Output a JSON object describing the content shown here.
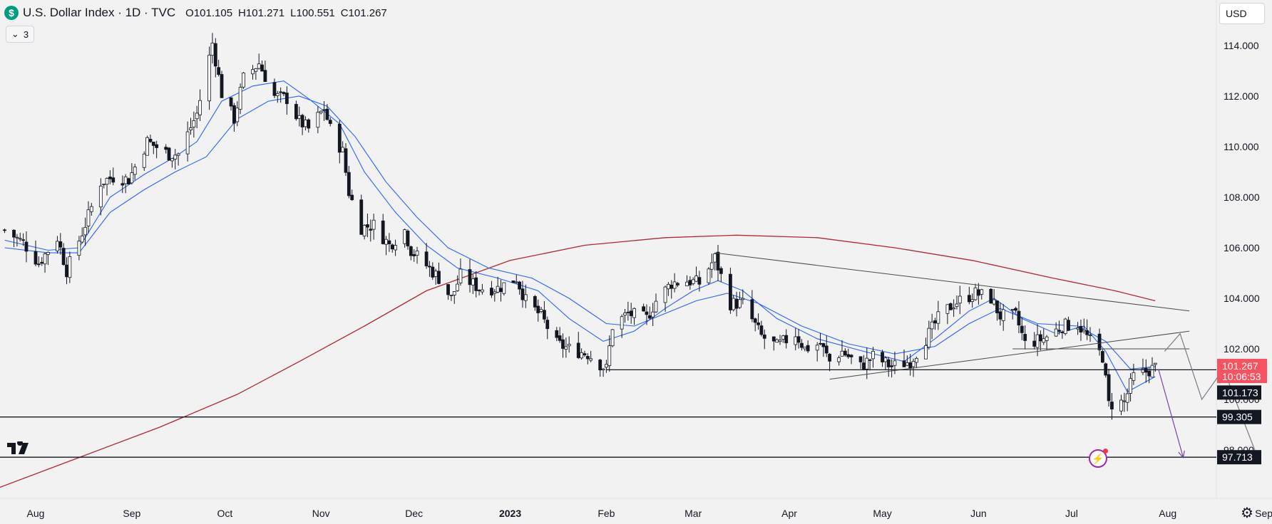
{
  "header": {
    "title": "U.S. Dollar Index · 1D · TVC",
    "logo_symbol": "$",
    "open_key": "O",
    "open": "101.105",
    "high_key": "H",
    "high": "101.271",
    "low_key": "L",
    "low": "100.551",
    "close_key": "C",
    "close": "101.267"
  },
  "legend_toggle": {
    "count": "3",
    "icon": "chevron-down-icon"
  },
  "currency": "USD",
  "colors": {
    "up_candle": "#ffffff",
    "down_candle": "#131722",
    "ema": "#2962ff",
    "sma200": "#b22833",
    "price_tag": "#f7525f",
    "level_tag": "#131722",
    "projection": "#787b86",
    "projection_alt": "#7b3fa8"
  },
  "chart_data": {
    "type": "candlestick",
    "symbol": "U.S. Dollar Index",
    "interval": "1D",
    "ylim": [
      96.0,
      115.5
    ],
    "y_ticks": [
      "114.000",
      "112.000",
      "110.000",
      "108.000",
      "106.000",
      "104.000",
      "102.000",
      "100.000",
      "98.000"
    ],
    "x_ticks": [
      {
        "label": "Aug",
        "date": "2022-08-01"
      },
      {
        "label": "Sep",
        "date": "2022-09-01"
      },
      {
        "label": "Oct",
        "date": "2022-10-01"
      },
      {
        "label": "Nov",
        "date": "2022-11-01"
      },
      {
        "label": "Dec",
        "date": "2022-12-01"
      },
      {
        "label": "2023",
        "date": "2023-01-01"
      },
      {
        "label": "Feb",
        "date": "2023-02-01"
      },
      {
        "label": "Mar",
        "date": "2023-03-01"
      },
      {
        "label": "Apr",
        "date": "2023-04-01"
      },
      {
        "label": "May",
        "date": "2023-05-01"
      },
      {
        "label": "Jun",
        "date": "2023-06-01"
      },
      {
        "label": "Jul",
        "date": "2023-07-01"
      },
      {
        "label": "Aug",
        "date": "2023-08-01"
      },
      {
        "label": "Sep",
        "date": "2023-09-01"
      }
    ],
    "last_price": "101.267",
    "countdown": "10:06:53",
    "horizontal_levels": [
      "101.173",
      "99.305",
      "97.713"
    ],
    "price_path": [
      [
        "2022-07-22",
        106.7
      ],
      [
        "2022-07-28",
        106.2
      ],
      [
        "2022-08-02",
        105.4
      ],
      [
        "2022-08-08",
        106.4
      ],
      [
        "2022-08-11",
        105.1
      ],
      [
        "2022-08-16",
        106.6
      ],
      [
        "2022-08-22",
        108.6
      ],
      [
        "2022-08-26",
        108.8
      ],
      [
        "2022-08-31",
        108.7
      ],
      [
        "2022-09-06",
        110.2
      ],
      [
        "2022-09-13",
        109.7
      ],
      [
        "2022-09-16",
        109.7
      ],
      [
        "2022-09-22",
        111.3
      ],
      [
        "2022-09-27",
        114.1
      ],
      [
        "2022-09-30",
        112.1
      ],
      [
        "2022-10-04",
        111.1
      ],
      [
        "2022-10-07",
        112.7
      ],
      [
        "2022-10-12",
        113.3
      ],
      [
        "2022-10-17",
        112.0
      ],
      [
        "2022-10-21",
        111.9
      ],
      [
        "2022-10-25",
        111.0
      ],
      [
        "2022-10-28",
        110.7
      ],
      [
        "2022-11-02",
        111.5
      ],
      [
        "2022-11-04",
        110.7
      ],
      [
        "2022-11-08",
        109.8
      ],
      [
        "2022-11-10",
        108.2
      ],
      [
        "2022-11-14",
        106.8
      ],
      [
        "2022-11-18",
        106.9
      ],
      [
        "2022-11-23",
        106.1
      ],
      [
        "2022-11-28",
        106.7
      ],
      [
        "2022-11-30",
        105.9
      ],
      [
        "2022-12-05",
        105.3
      ],
      [
        "2022-12-09",
        104.8
      ],
      [
        "2022-12-13",
        104.0
      ],
      [
        "2022-12-16",
        104.9
      ],
      [
        "2022-12-22",
        104.4
      ],
      [
        "2022-12-28",
        104.4
      ],
      [
        "2023-01-03",
        104.8
      ],
      [
        "2023-01-06",
        103.9
      ],
      [
        "2023-01-11",
        103.3
      ],
      [
        "2023-01-16",
        102.2
      ],
      [
        "2023-01-20",
        102.0
      ],
      [
        "2023-01-26",
        101.8
      ],
      [
        "2023-02-01",
        101.2
      ],
      [
        "2023-02-03",
        102.9
      ],
      [
        "2023-02-08",
        103.4
      ],
      [
        "2023-02-14",
        103.2
      ],
      [
        "2023-02-17",
        103.9
      ],
      [
        "2023-02-22",
        104.6
      ],
      [
        "2023-02-27",
        104.7
      ],
      [
        "2023-03-03",
        104.6
      ],
      [
        "2023-03-08",
        105.6
      ],
      [
        "2023-03-13",
        103.8
      ],
      [
        "2023-03-17",
        103.8
      ],
      [
        "2023-03-23",
        102.5
      ],
      [
        "2023-03-28",
        102.1
      ],
      [
        "2023-04-03",
        102.6
      ],
      [
        "2023-04-06",
        102.0
      ],
      [
        "2023-04-11",
        102.2
      ],
      [
        "2023-04-14",
        101.5
      ],
      [
        "2023-04-18",
        101.9
      ],
      [
        "2023-04-24",
        101.3
      ],
      [
        "2023-04-28",
        101.7
      ],
      [
        "2023-05-04",
        101.3
      ],
      [
        "2023-05-10",
        101.5
      ],
      [
        "2023-05-15",
        102.4
      ],
      [
        "2023-05-19",
        103.2
      ],
      [
        "2023-05-24",
        103.8
      ],
      [
        "2023-05-31",
        104.2
      ],
      [
        "2023-06-05",
        104.0
      ],
      [
        "2023-06-08",
        103.3
      ],
      [
        "2023-06-13",
        103.3
      ],
      [
        "2023-06-16",
        102.2
      ],
      [
        "2023-06-22",
        102.4
      ],
      [
        "2023-06-28",
        102.9
      ],
      [
        "2023-07-03",
        103.0
      ],
      [
        "2023-07-07",
        102.3
      ],
      [
        "2023-07-11",
        101.7
      ],
      [
        "2023-07-13",
        99.8
      ],
      [
        "2023-07-18",
        99.9
      ],
      [
        "2023-07-21",
        100.9
      ],
      [
        "2023-07-25",
        101.1
      ],
      [
        "2023-07-28",
        101.27
      ]
    ],
    "ema_fast": [
      [
        "2022-07-22",
        106.3
      ],
      [
        "2022-08-05",
        105.9
      ],
      [
        "2022-08-15",
        106.0
      ],
      [
        "2022-08-25",
        108.0
      ],
      [
        "2022-09-05",
        108.9
      ],
      [
        "2022-09-15",
        109.6
      ],
      [
        "2022-09-22",
        110.2
      ],
      [
        "2022-09-30",
        111.8
      ],
      [
        "2022-10-10",
        112.4
      ],
      [
        "2022-10-20",
        112.6
      ],
      [
        "2022-10-28",
        111.9
      ],
      [
        "2022-11-07",
        110.9
      ],
      [
        "2022-11-15",
        109.0
      ],
      [
        "2022-11-25",
        107.4
      ],
      [
        "2022-12-05",
        106.1
      ],
      [
        "2022-12-15",
        105.2
      ],
      [
        "2022-12-28",
        104.8
      ],
      [
        "2023-01-10",
        104.3
      ],
      [
        "2023-01-20",
        103.2
      ],
      [
        "2023-01-31",
        102.3
      ],
      [
        "2023-02-10",
        102.7
      ],
      [
        "2023-02-20",
        103.6
      ],
      [
        "2023-03-01",
        104.3
      ],
      [
        "2023-03-09",
        104.7
      ],
      [
        "2023-03-17",
        104.3
      ],
      [
        "2023-03-28",
        103.2
      ],
      [
        "2023-04-10",
        102.4
      ],
      [
        "2023-04-25",
        101.9
      ],
      [
        "2023-05-08",
        101.5
      ],
      [
        "2023-05-18",
        102.4
      ],
      [
        "2023-05-29",
        103.5
      ],
      [
        "2023-06-06",
        104.0
      ],
      [
        "2023-06-15",
        103.2
      ],
      [
        "2023-06-26",
        102.6
      ],
      [
        "2023-07-05",
        102.9
      ],
      [
        "2023-07-12",
        101.9
      ],
      [
        "2023-07-19",
        100.3
      ],
      [
        "2023-07-28",
        100.9
      ]
    ],
    "ema_slow": [
      [
        "2022-07-22",
        106.0
      ],
      [
        "2022-08-05",
        105.8
      ],
      [
        "2022-08-15",
        105.8
      ],
      [
        "2022-08-25",
        107.4
      ],
      [
        "2022-09-05",
        108.3
      ],
      [
        "2022-09-15",
        109.0
      ],
      [
        "2022-09-25",
        109.6
      ],
      [
        "2022-10-05",
        111.1
      ],
      [
        "2022-10-15",
        111.8
      ],
      [
        "2022-10-25",
        112.0
      ],
      [
        "2022-11-03",
        111.6
      ],
      [
        "2022-11-12",
        110.4
      ],
      [
        "2022-11-22",
        108.6
      ],
      [
        "2022-12-02",
        107.2
      ],
      [
        "2022-12-12",
        106.0
      ],
      [
        "2022-12-25",
        105.2
      ],
      [
        "2023-01-08",
        104.8
      ],
      [
        "2023-01-20",
        104.0
      ],
      [
        "2023-02-01",
        103.0
      ],
      [
        "2023-02-10",
        102.9
      ],
      [
        "2023-02-20",
        103.4
      ],
      [
        "2023-03-02",
        103.9
      ],
      [
        "2023-03-12",
        104.2
      ],
      [
        "2023-03-22",
        103.8
      ],
      [
        "2023-04-05",
        102.9
      ],
      [
        "2023-04-20",
        102.2
      ],
      [
        "2023-05-05",
        101.8
      ],
      [
        "2023-05-18",
        102.1
      ],
      [
        "2023-05-29",
        103.0
      ],
      [
        "2023-06-08",
        103.6
      ],
      [
        "2023-06-20",
        103.0
      ],
      [
        "2023-07-03",
        102.9
      ],
      [
        "2023-07-12",
        102.3
      ],
      [
        "2023-07-20",
        101.2
      ],
      [
        "2023-07-28",
        101.3
      ]
    ],
    "sma200": [
      [
        "2022-07-20",
        96.5
      ],
      [
        "2022-08-15",
        97.7
      ],
      [
        "2022-09-10",
        98.9
      ],
      [
        "2022-10-05",
        100.2
      ],
      [
        "2022-10-25",
        101.5
      ],
      [
        "2022-11-15",
        102.9
      ],
      [
        "2022-12-05",
        104.3
      ],
      [
        "2023-01-01",
        105.5
      ],
      [
        "2023-01-25",
        106.1
      ],
      [
        "2023-02-20",
        106.4
      ],
      [
        "2023-03-15",
        106.5
      ],
      [
        "2023-04-10",
        106.4
      ],
      [
        "2023-05-05",
        106.0
      ],
      [
        "2023-05-30",
        105.5
      ],
      [
        "2023-06-25",
        104.8
      ],
      [
        "2023-07-15",
        104.3
      ],
      [
        "2023-07-28",
        103.9
      ]
    ],
    "trendlines": [
      {
        "name": "upper-wedge-line",
        "from": [
          "2023-03-08",
          105.8
        ],
        "to": [
          "2023-08-08",
          103.5
        ]
      },
      {
        "name": "lower-wedge-line",
        "from": [
          "2023-04-14",
          100.8
        ],
        "to": [
          "2023-08-08",
          102.7
        ]
      },
      {
        "name": "neckline-resistance",
        "from": [
          "2023-06-12",
          102.0
        ],
        "to": [
          "2023-08-08",
          102.0
        ]
      }
    ],
    "support_line_short": {
      "from": [
        "2023-02-01",
        101.173
      ]
    },
    "projection_path": [
      [
        "2023-07-31",
        101.9
      ],
      [
        "2023-08-05",
        102.6
      ],
      [
        "2023-08-12",
        100.0
      ],
      [
        "2023-08-19",
        101.2
      ],
      [
        "2023-08-30",
        97.7
      ]
    ],
    "projection_alt": [
      [
        "2023-07-29",
        101.2
      ],
      [
        "2023-08-06",
        97.7
      ]
    ],
    "grid": false,
    "legend": "none"
  }
}
